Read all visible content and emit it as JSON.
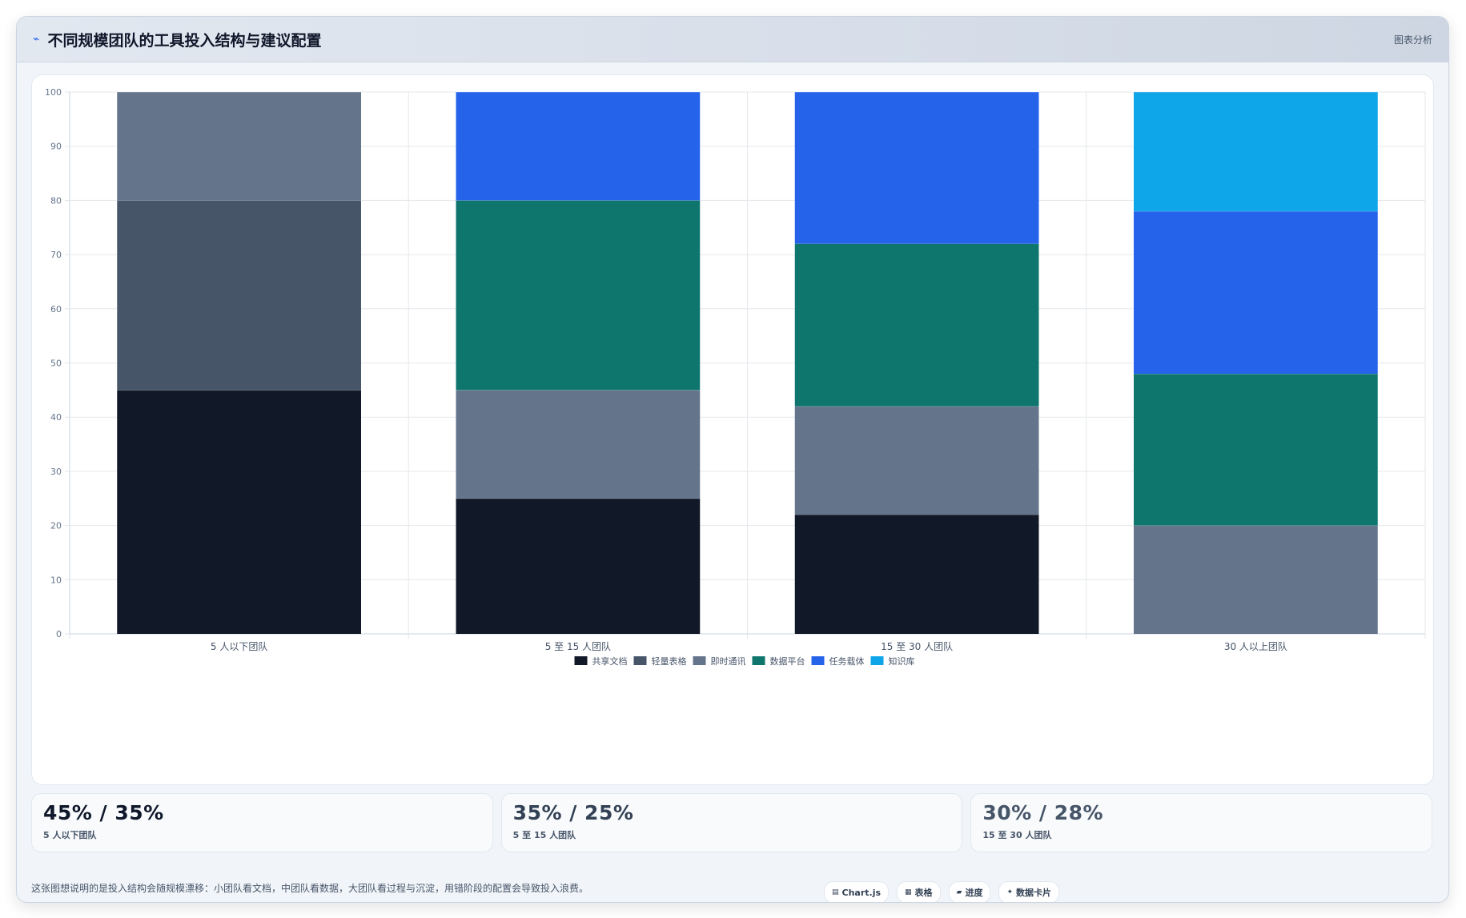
{
  "header": {
    "title": "不同规模团队的工具投入结构与建议配置",
    "tag": "图表分析",
    "icon": "trend-line-icon"
  },
  "chart_data": {
    "type": "bar",
    "stacked": true,
    "categories": [
      "5 人以下团队",
      "5 至 15 人团队",
      "15 至 30 人团队",
      "30 人以上团队"
    ],
    "series": [
      {
        "name": "共享文档",
        "color": "#111827",
        "values": [
          45,
          25,
          22,
          0
        ]
      },
      {
        "name": "轻量表格",
        "color": "#475569",
        "values": [
          35,
          0,
          0,
          0
        ]
      },
      {
        "name": "即时通讯",
        "color": "#64748b",
        "values": [
          20,
          20,
          20,
          20
        ]
      },
      {
        "name": "数据平台",
        "color": "#0f766e",
        "values": [
          0,
          35,
          30,
          28
        ]
      },
      {
        "name": "任务载体",
        "color": "#2563eb",
        "values": [
          0,
          20,
          28,
          30
        ]
      },
      {
        "name": "知识库",
        "color": "#0ea5e9",
        "values": [
          0,
          0,
          0,
          22
        ]
      }
    ],
    "y_ticks": [
      "0",
      "10",
      "20",
      "30",
      "40",
      "50",
      "60",
      "70",
      "80",
      "90",
      "100"
    ],
    "ylim": [
      0,
      100
    ],
    "grid": true,
    "legend_position": "bottom"
  },
  "stats": [
    {
      "value": "45% / 35%",
      "label": "5 人以下团队",
      "color": "#0f172a"
    },
    {
      "value": "35% / 25%",
      "label": "5 至 15 人团队",
      "color": "#334155"
    },
    {
      "value": "30% / 28%",
      "label": "15 至 30 人团队",
      "color": "#475569"
    }
  ],
  "footer": {
    "note": "这张图想说明的是投入结构会随规模漂移：小团队看文档，中团队看数据，大团队看过程与沉淀，用错阶段的配置会导致投入浪费。",
    "chips": [
      {
        "icon": "▤",
        "label": "Chart.js"
      },
      {
        "icon": "▦",
        "label": "表格"
      },
      {
        "icon": "▰",
        "label": "进度"
      },
      {
        "icon": "✦",
        "label": "数据卡片"
      }
    ]
  }
}
